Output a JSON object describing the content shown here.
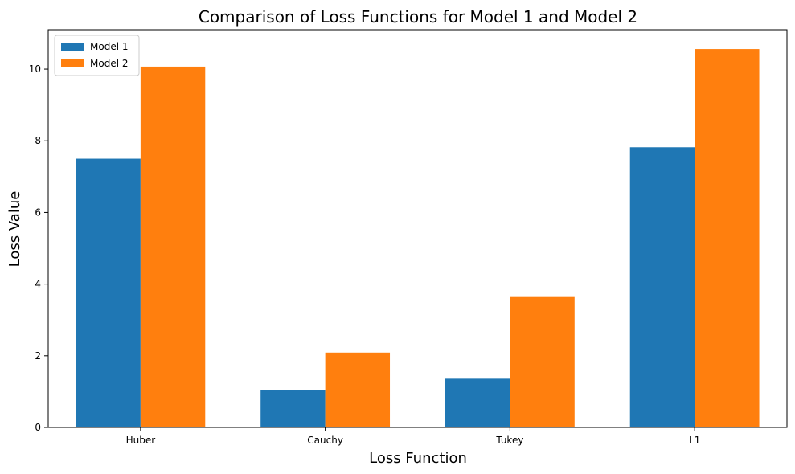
{
  "chart_data": {
    "type": "bar",
    "title": "Comparison of Loss Functions for Model 1 and Model 2",
    "xlabel": "Loss Function",
    "ylabel": "Loss Value",
    "categories": [
      "Huber",
      "Cauchy",
      "Tukey",
      "L1"
    ],
    "series": [
      {
        "name": "Model 1",
        "color": "#1f77b4",
        "values": [
          7.5,
          1.04,
          1.36,
          7.82
        ]
      },
      {
        "name": "Model 2",
        "color": "#ff7f0e",
        "values": [
          10.07,
          2.09,
          3.64,
          10.56
        ]
      }
    ],
    "ylim": [
      0,
      11.1
    ],
    "yticks": [
      "0",
      "2",
      "4",
      "6",
      "8",
      "10"
    ],
    "grid": false,
    "legend_position": "top-left"
  }
}
